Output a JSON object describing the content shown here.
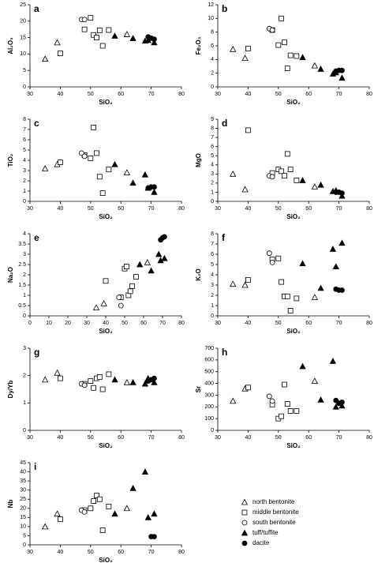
{
  "chart_data": [
    {
      "type": "scatter",
      "label": "a",
      "xlabel": "SiO₂",
      "ylabel": "Al₂O₃",
      "xlim": [
        30,
        80
      ],
      "xticks": [
        30,
        40,
        50,
        60,
        70,
        80
      ],
      "ylim": [
        0,
        25
      ],
      "yticks": [
        0,
        5,
        10,
        15,
        20,
        25
      ],
      "series": [
        {
          "name": "north bentonite",
          "marker": "triangle-open",
          "color": "#000000",
          "x": [
            35,
            39,
            62
          ],
          "values": [
            8.5,
            13.5,
            16
          ]
        },
        {
          "name": "middle bentonite",
          "marker": "square-open",
          "color": "#000000",
          "x": [
            40,
            48,
            50,
            51,
            52,
            53,
            54,
            56
          ],
          "values": [
            10.2,
            17.5,
            21,
            15.8,
            15,
            17.2,
            12.5,
            17.3
          ]
        },
        {
          "name": "south bentonite",
          "marker": "circle-open",
          "color": "#000000",
          "x": [
            47,
            48
          ],
          "values": [
            20.5,
            20.5
          ]
        },
        {
          "name": "tuff/tuffite",
          "marker": "triangle-filled",
          "color": "#000000",
          "x": [
            58,
            64,
            68,
            69,
            71
          ],
          "values": [
            15.5,
            14.8,
            14,
            14.2,
            13.5
          ]
        },
        {
          "name": "dacite",
          "marker": "circle-filled",
          "color": "#000000",
          "x": [
            69,
            70,
            71
          ],
          "values": [
            15.2,
            14.8,
            14.5
          ]
        }
      ]
    },
    {
      "type": "scatter",
      "label": "b",
      "xlabel": "SiO₂",
      "ylabel": "Fe₂O₃",
      "xlim": [
        30,
        80
      ],
      "xticks": [
        30,
        40,
        50,
        60,
        70,
        80
      ],
      "ylim": [
        0,
        12
      ],
      "yticks": [
        0,
        2,
        4,
        6,
        8,
        10,
        12
      ],
      "series": [
        {
          "name": "north bentonite",
          "marker": "triangle-open",
          "color": "#000000",
          "x": [
            35,
            39,
            62
          ],
          "values": [
            5.5,
            4.2,
            3.1
          ]
        },
        {
          "name": "middle bentonite",
          "marker": "square-open",
          "color": "#000000",
          "x": [
            40,
            48,
            50,
            51,
            52,
            53,
            54,
            56
          ],
          "values": [
            5.6,
            8.3,
            6.1,
            10,
            6.5,
            2.7,
            4.6,
            4.5
          ]
        },
        {
          "name": "south bentonite",
          "marker": "circle-open",
          "color": "#000000",
          "x": [
            47,
            48
          ],
          "values": [
            8.5,
            8.3
          ]
        },
        {
          "name": "tuff/tuffite",
          "marker": "triangle-filled",
          "color": "#000000",
          "x": [
            58,
            64,
            68,
            69,
            71
          ],
          "values": [
            4.3,
            2.6,
            1.9,
            2.1,
            1.3
          ]
        },
        {
          "name": "dacite",
          "marker": "circle-filled",
          "color": "#000000",
          "x": [
            69,
            70,
            71
          ],
          "values": [
            2.3,
            2.4,
            2.4
          ]
        }
      ]
    },
    {
      "type": "scatter",
      "label": "c",
      "xlabel": "SiO₂",
      "ylabel": "TiO₂",
      "xlim": [
        30,
        80
      ],
      "xticks": [
        30,
        40,
        50,
        60,
        70,
        80
      ],
      "ylim": [
        0,
        8
      ],
      "yticks": [
        0,
        1,
        2,
        3,
        4,
        5,
        6,
        7,
        8
      ],
      "series": [
        {
          "name": "north bentonite",
          "marker": "triangle-open",
          "color": "#000000",
          "x": [
            35,
            39,
            62
          ],
          "values": [
            3.2,
            3.6,
            2.8
          ]
        },
        {
          "name": "middle bentonite",
          "marker": "square-open",
          "color": "#000000",
          "x": [
            40,
            48,
            50,
            51,
            52,
            53,
            54,
            56
          ],
          "values": [
            3.8,
            4.5,
            4.2,
            7.2,
            4.7,
            2.4,
            0.8,
            3.1
          ]
        },
        {
          "name": "south bentonite",
          "marker": "circle-open",
          "color": "#000000",
          "x": [
            47,
            48
          ],
          "values": [
            4.7,
            4.4
          ]
        },
        {
          "name": "tuff/tuffite",
          "marker": "triangle-filled",
          "color": "#000000",
          "x": [
            58,
            64,
            68,
            69,
            71
          ],
          "values": [
            3.6,
            1.8,
            2.6,
            1.3,
            0.9
          ]
        },
        {
          "name": "dacite",
          "marker": "circle-filled",
          "color": "#000000",
          "x": [
            69,
            70,
            71
          ],
          "values": [
            1.3,
            1.4,
            1.4
          ]
        }
      ]
    },
    {
      "type": "scatter",
      "label": "d",
      "xlabel": "SiO₂",
      "ylabel": "MgO",
      "xlim": [
        30,
        80
      ],
      "xticks": [
        30,
        40,
        50,
        60,
        70,
        80
      ],
      "ylim": [
        0,
        9
      ],
      "yticks": [
        0,
        1,
        2,
        3,
        4,
        5,
        6,
        7,
        8,
        9
      ],
      "series": [
        {
          "name": "north bentonite",
          "marker": "triangle-open",
          "color": "#000000",
          "x": [
            35,
            39,
            62
          ],
          "values": [
            3,
            1.3,
            1.6
          ]
        },
        {
          "name": "middle bentonite",
          "marker": "square-open",
          "color": "#000000",
          "x": [
            40,
            48,
            50,
            51,
            52,
            53,
            54,
            56
          ],
          "values": [
            7.8,
            3.1,
            3.5,
            3.3,
            2.8,
            5.2,
            3.5,
            2.3
          ]
        },
        {
          "name": "south bentonite",
          "marker": "circle-open",
          "color": "#000000",
          "x": [
            47,
            48
          ],
          "values": [
            2.8,
            2.7
          ]
        },
        {
          "name": "tuff/tuffite",
          "marker": "triangle-filled",
          "color": "#000000",
          "x": [
            58,
            64,
            68,
            69,
            71
          ],
          "values": [
            2.3,
            1.8,
            1.1,
            1.2,
            0.6
          ]
        },
        {
          "name": "dacite",
          "marker": "circle-filled",
          "color": "#000000",
          "x": [
            69,
            70,
            71
          ],
          "values": [
            1,
            1,
            0.9
          ]
        }
      ]
    },
    {
      "type": "scatter",
      "label": "e",
      "xlabel": "SiO₂",
      "ylabel": "Na₂O",
      "xlim": [
        0,
        80
      ],
      "xticks": [
        0,
        10,
        20,
        30,
        40,
        50,
        60,
        70,
        80
      ],
      "ylim": [
        0,
        4
      ],
      "yticks": [
        0,
        0.5,
        1,
        1.5,
        2,
        2.5,
        3,
        3.5,
        4
      ],
      "series": [
        {
          "name": "north bentonite",
          "marker": "triangle-open",
          "color": "#000000",
          "x": [
            35,
            39,
            62
          ],
          "values": [
            0.4,
            0.6,
            2.6
          ]
        },
        {
          "name": "middle bentonite",
          "marker": "square-open",
          "color": "#000000",
          "x": [
            40,
            48,
            50,
            51,
            52,
            53,
            54,
            56
          ],
          "values": [
            1.7,
            0.9,
            2.3,
            2.4,
            1.0,
            1.2,
            1.45,
            1.9
          ]
        },
        {
          "name": "south bentonite",
          "marker": "circle-open",
          "color": "#000000",
          "x": [
            47,
            48
          ],
          "values": [
            0.9,
            0.5
          ]
        },
        {
          "name": "tuff/tuffite",
          "marker": "triangle-filled",
          "color": "#000000",
          "x": [
            58,
            64,
            68,
            69,
            71
          ],
          "values": [
            2.5,
            2.2,
            3,
            2.7,
            2.8
          ]
        },
        {
          "name": "dacite",
          "marker": "circle-filled",
          "color": "#000000",
          "x": [
            69,
            70,
            71
          ],
          "values": [
            3.7,
            3.8,
            3.85
          ]
        }
      ]
    },
    {
      "type": "scatter",
      "label": "f",
      "xlabel": "SiO₂",
      "ylabel": "K₂O",
      "xlim": [
        30,
        80
      ],
      "xticks": [
        30,
        40,
        50,
        60,
        70,
        80
      ],
      "ylim": [
        0,
        8
      ],
      "yticks": [
        0,
        1,
        2,
        3,
        4,
        5,
        6,
        7,
        8
      ],
      "series": [
        {
          "name": "north bentonite",
          "marker": "triangle-open",
          "color": "#000000",
          "x": [
            35,
            39,
            62
          ],
          "values": [
            3.1,
            3,
            1.8
          ]
        },
        {
          "name": "middle bentonite",
          "marker": "square-open",
          "color": "#000000",
          "x": [
            40,
            48,
            50,
            51,
            52,
            53,
            54,
            56
          ],
          "values": [
            3.5,
            5.5,
            5.6,
            3.3,
            1.9,
            1.9,
            0.5,
            1.7
          ]
        },
        {
          "name": "south bentonite",
          "marker": "circle-open",
          "color": "#000000",
          "x": [
            47,
            48
          ],
          "values": [
            6.1,
            5.2
          ]
        },
        {
          "name": "tuff/tuffite",
          "marker": "triangle-filled",
          "color": "#000000",
          "x": [
            58,
            64,
            68,
            69,
            71
          ],
          "values": [
            5.1,
            2.7,
            6.5,
            4.8,
            7.1
          ]
        },
        {
          "name": "dacite",
          "marker": "circle-filled",
          "color": "#000000",
          "x": [
            69,
            70,
            71
          ],
          "values": [
            2.6,
            2.5,
            2.5
          ]
        }
      ]
    },
    {
      "type": "scatter",
      "label": "g",
      "xlabel": "SiO₂",
      "ylabel": "Dy/Yb",
      "xlim": [
        30,
        80
      ],
      "xticks": [
        30,
        40,
        50,
        60,
        70,
        80
      ],
      "ylim": [
        0,
        3
      ],
      "yticks": [
        0,
        1,
        2,
        3
      ],
      "series": [
        {
          "name": "north bentonite",
          "marker": "triangle-open",
          "color": "#000000",
          "x": [
            35,
            39,
            62
          ],
          "values": [
            1.85,
            2.1,
            1.75
          ]
        },
        {
          "name": "middle bentonite",
          "marker": "square-open",
          "color": "#000000",
          "x": [
            40,
            48,
            50,
            51,
            52,
            53,
            54,
            56
          ],
          "values": [
            1.9,
            1.7,
            1.8,
            1.55,
            1.9,
            1.95,
            1.5,
            2.05
          ]
        },
        {
          "name": "south bentonite",
          "marker": "circle-open",
          "color": "#000000",
          "x": [
            47,
            48
          ],
          "values": [
            1.7,
            1.65
          ]
        },
        {
          "name": "tuff/tuffite",
          "marker": "triangle-filled",
          "color": "#000000",
          "x": [
            58,
            64,
            68,
            69,
            71
          ],
          "values": [
            1.85,
            1.75,
            1.7,
            1.9,
            1.75
          ]
        },
        {
          "name": "dacite",
          "marker": "circle-filled",
          "color": "#000000",
          "x": [
            69,
            70,
            71
          ],
          "values": [
            1.8,
            1.85,
            1.9
          ]
        }
      ]
    },
    {
      "type": "scatter",
      "label": "h",
      "xlabel": "SiO₂",
      "ylabel": "Sr",
      "xlim": [
        30,
        80
      ],
      "xticks": [
        30,
        40,
        50,
        60,
        70,
        80
      ],
      "ylim": [
        0,
        700
      ],
      "yticks": [
        0,
        100,
        200,
        300,
        400,
        500,
        600,
        700
      ],
      "series": [
        {
          "name": "north bentonite",
          "marker": "triangle-open",
          "color": "#000000",
          "x": [
            35,
            39,
            62
          ],
          "values": [
            250,
            355,
            420
          ]
        },
        {
          "name": "middle bentonite",
          "marker": "square-open",
          "color": "#000000",
          "x": [
            40,
            48,
            50,
            51,
            52,
            53,
            54,
            56
          ],
          "values": [
            365,
            220,
            100,
            120,
            390,
            225,
            165,
            165
          ]
        },
        {
          "name": "south bentonite",
          "marker": "circle-open",
          "color": "#000000",
          "x": [
            47,
            48
          ],
          "values": [
            290,
            250
          ]
        },
        {
          "name": "tuff/tuffite",
          "marker": "triangle-filled",
          "color": "#000000",
          "x": [
            58,
            64,
            68,
            69,
            71
          ],
          "values": [
            545,
            260,
            590,
            200,
            210
          ]
        },
        {
          "name": "dacite",
          "marker": "circle-filled",
          "color": "#000000",
          "x": [
            69,
            70,
            71
          ],
          "values": [
            255,
            230,
            240
          ]
        }
      ]
    },
    {
      "type": "scatter",
      "label": "i",
      "xlabel": "SiO₂",
      "ylabel": "Nb",
      "xlim": [
        30,
        80
      ],
      "xticks": [
        30,
        40,
        50,
        60,
        70,
        80
      ],
      "ylim": [
        0,
        45
      ],
      "yticks": [
        0,
        5,
        10,
        15,
        20,
        25,
        30,
        35,
        40,
        45
      ],
      "legend": true,
      "series": [
        {
          "name": "north bentonite",
          "marker": "triangle-open",
          "color": "#000000",
          "x": [
            35,
            39,
            62
          ],
          "values": [
            10,
            17,
            20
          ]
        },
        {
          "name": "middle bentonite",
          "marker": "square-open",
          "color": "#000000",
          "x": [
            40,
            48,
            50,
            51,
            52,
            53,
            54,
            56
          ],
          "values": [
            14,
            19,
            20,
            24,
            27,
            25,
            8,
            21
          ]
        },
        {
          "name": "south bentonite",
          "marker": "circle-open",
          "color": "#000000",
          "x": [
            47,
            48
          ],
          "values": [
            19,
            18
          ]
        },
        {
          "name": "tuff/tuffite",
          "marker": "triangle-filled",
          "color": "#000000",
          "x": [
            58,
            64,
            68,
            69,
            71
          ],
          "values": [
            17,
            31,
            40,
            15,
            17
          ]
        },
        {
          "name": "dacite",
          "marker": "circle-filled",
          "color": "#000000",
          "x": [
            70,
            71
          ],
          "values": [
            4.5,
            4.5
          ]
        }
      ]
    }
  ]
}
